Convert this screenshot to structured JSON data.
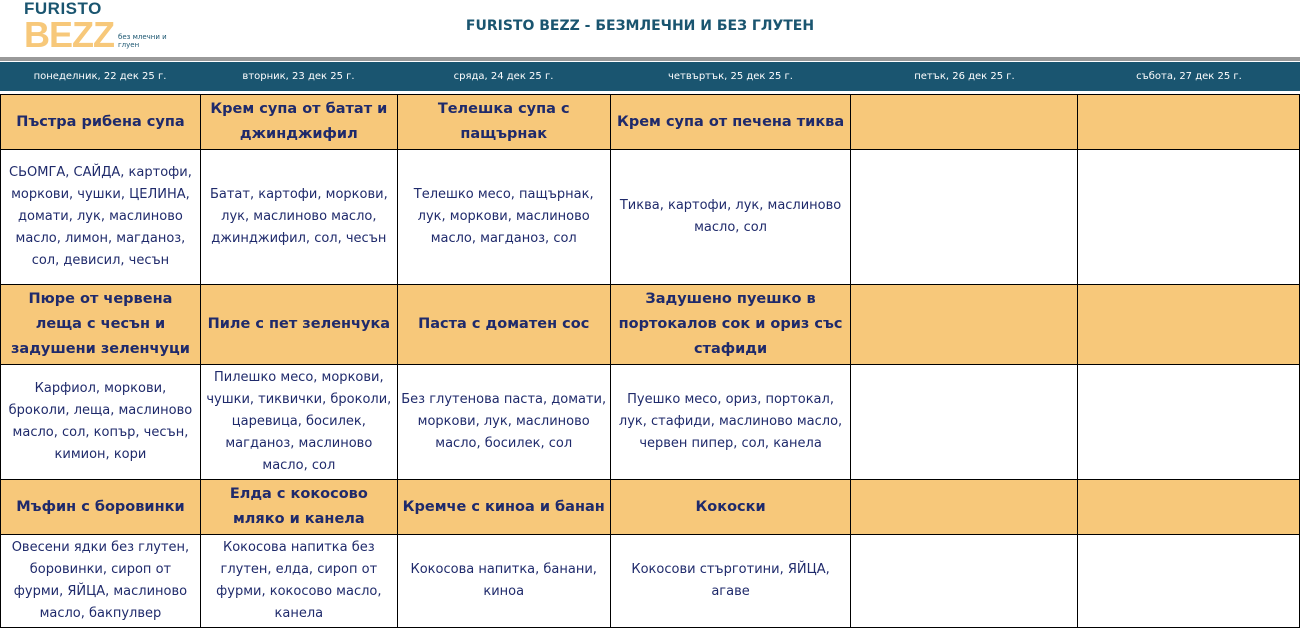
{
  "logo": {
    "line1": "FURISTO",
    "line2": "BEZZ",
    "tag": "без млечни и глуен"
  },
  "title": "FURISTO BEZZ - БЕЗМЛЕЧНИ И БЕЗ ГЛУТЕН",
  "days": [
    "понеделник, 22 дек 25 г.",
    "вторник, 23 дек 25 г.",
    "сряда, 24 дек 25 г.",
    "четвъртък, 25 дек 25 г.",
    "петък, 26 дек 25 г.",
    "събота, 27 дек 25 г."
  ],
  "colors": {
    "header": "#1a5570",
    "title_row": "#f7c87a",
    "text": "#1f2a6b"
  },
  "meals": [
    {
      "titles": [
        "Пъстра рибена супа",
        "Крем супа от батат и джинджифил",
        "Телешка супа с пащърнак",
        "Крем супа от печена тиква",
        "",
        ""
      ],
      "ingredients": [
        "СЬОМГА, САЙДА, картофи, моркови, чушки, ЦЕЛИНА, домати, лук, маслиново масло, лимон, магданоз, сол, девисил, чесън",
        "Батат, картофи, моркови, лук, маслиново масло, джинджифил, сол, чесън",
        "Телешко месо, пащърнак, лук, моркови,  маслиново масло, магданоз, сол",
        "Тиква, картофи, лук, маслиново масло, сол",
        "",
        ""
      ]
    },
    {
      "titles": [
        "Пюре от червена леща с чесън и задушени зеленчуци",
        "Пиле с пет зеленчука",
        "Паста с доматен сос",
        "Задушено пуешко в портокалов сок и ориз със стафиди",
        "",
        ""
      ],
      "ingredients": [
        "Карфиол, моркови, броколи, леща, маслиново масло, сол, копър, чесън, кимион, кори",
        "Пилешко месо, моркови, чушки, тиквички, броколи, царевица, босилек, магданоз,  маслиново масло, сол",
        "Без глутенова паста, домати, моркови, лук, маслиново масло, босилек, сол",
        "Пуешко месо, ориз,  портокал, лук, стафиди,  маслиново масло, червен пипер, сол, канела",
        "",
        ""
      ]
    },
    {
      "titles": [
        "Мъфин с боровинки",
        "Елда с кокосово мляко и канела",
        "Кремче с киноа и банан",
        "Кокоски",
        "",
        ""
      ],
      "ingredients": [
        "Овесени ядки без глутен, боровинки, сироп от фурми, ЯЙЦА, маслиново масло, бакпулвер",
        "Кокосова напитка без глутен, елда, сироп от фурми, кокосово масло, канела",
        "Кокосова напитка, банани, киноа",
        "Кокосови стърготини, ЯЙЦА, агаве",
        "",
        ""
      ]
    }
  ]
}
